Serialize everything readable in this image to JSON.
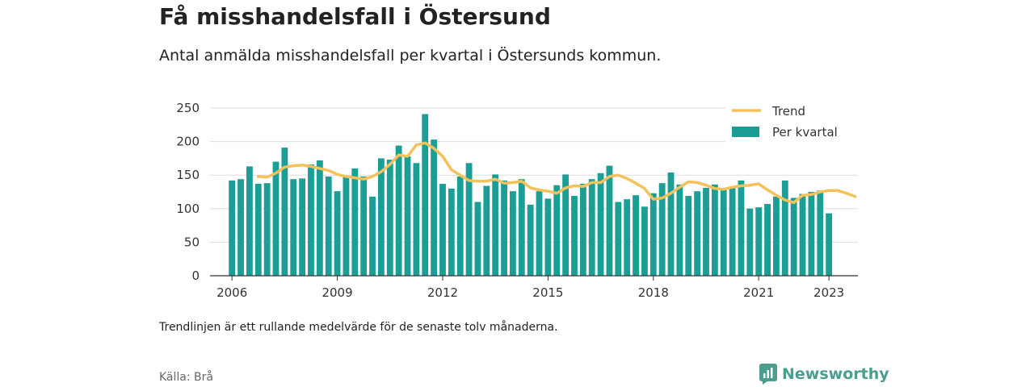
{
  "title": "Få misshandelsfall i Östersund",
  "subtitle": "Antal anmälda misshandelsfall per kvartal i Östersunds kommun.",
  "footnote": "Trendlinjen är ett rullande medelvärde för de senaste tolv månaderna.",
  "source": "Källa: Brå",
  "brand": "Newsworthy",
  "colors": {
    "bar": "#1a9e96",
    "trend": "#f5c15a",
    "grid": "#dddddd",
    "axis": "#333333",
    "brand": "#4a9d8f"
  },
  "chart_data": {
    "type": "bar",
    "ylim": [
      0,
      250
    ],
    "yticks": [
      0,
      50,
      100,
      150,
      200,
      250
    ],
    "x_start": "2006-Q1",
    "xlim_years": [
      2005.5,
      2023.95
    ],
    "xticks": [
      "2006",
      "2009",
      "2012",
      "2015",
      "2018",
      "2021",
      "2023"
    ],
    "legend_position": "top-right",
    "grid": true,
    "series": [
      {
        "name": "Per kvartal",
        "type": "bar",
        "values": [
          142,
          144,
          163,
          137,
          138,
          170,
          191,
          144,
          145,
          166,
          172,
          148,
          126,
          149,
          160,
          148,
          118,
          175,
          173,
          194,
          178,
          168,
          241,
          203,
          137,
          130,
          148,
          168,
          110,
          134,
          151,
          142,
          126,
          144,
          106,
          126,
          115,
          135,
          151,
          119,
          137,
          144,
          153,
          164,
          110,
          114,
          120,
          103,
          123,
          138,
          154,
          136,
          119,
          126,
          131,
          136,
          130,
          131,
          142,
          100,
          102,
          107,
          118,
          142,
          116,
          122,
          125,
          127,
          93
        ]
      },
      {
        "name": "Trend",
        "type": "line",
        "values": [
          148,
          147,
          153,
          162,
          164,
          165,
          163,
          160,
          157,
          151,
          148,
          146,
          144,
          148,
          155,
          166,
          180,
          178,
          195,
          198,
          190,
          178,
          158,
          150,
          142,
          141,
          141,
          144,
          138,
          139,
          141,
          131,
          128,
          126,
          123,
          131,
          134,
          133,
          139,
          139,
          148,
          150,
          145,
          138,
          130,
          114,
          116,
          123,
          132,
          140,
          139,
          135,
          130,
          129,
          132,
          134,
          135,
          137,
          128,
          120,
          113,
          109,
          120,
          121,
          125,
          127,
          127,
          123,
          118
        ],
        "x_start_index": 3
      }
    ]
  }
}
